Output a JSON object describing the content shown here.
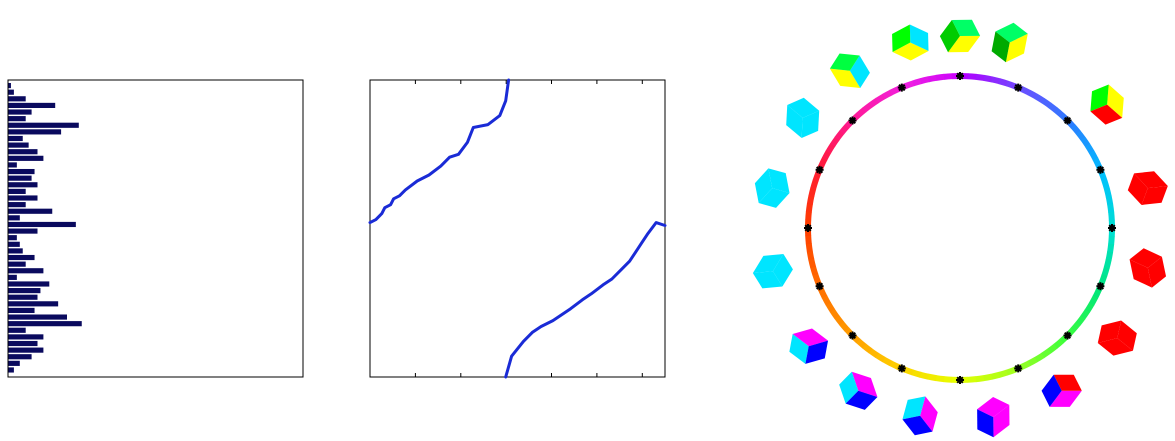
{
  "colors": {
    "bar": "#0a0a5e",
    "curve": "#1a2bd6",
    "marker": "#000000",
    "axes": "#000000"
  },
  "chart_data": [
    {
      "type": "bar",
      "orientation": "horizontal",
      "title": "",
      "xlabel": "",
      "ylabel": "",
      "grid": false,
      "xlim": [
        0,
        1
      ],
      "values": [
        0.01,
        0.02,
        0.06,
        0.16,
        0.08,
        0.06,
        0.24,
        0.18,
        0.05,
        0.07,
        0.1,
        0.12,
        0.03,
        0.09,
        0.08,
        0.1,
        0.06,
        0.1,
        0.06,
        0.15,
        0.04,
        0.23,
        0.1,
        0.03,
        0.04,
        0.05,
        0.09,
        0.06,
        0.12,
        0.03,
        0.14,
        0.11,
        0.1,
        0.17,
        0.09,
        0.2,
        0.25,
        0.06,
        0.12,
        0.1,
        0.12,
        0.08,
        0.04,
        0.02
      ]
    },
    {
      "type": "line",
      "title": "",
      "xlabel": "",
      "ylabel": "",
      "grid": false,
      "xlim": [
        0,
        1
      ],
      "ylim": [
        0,
        1
      ],
      "series": [
        {
          "x": [
            0.0,
            0.02,
            0.04,
            0.05,
            0.07,
            0.08,
            0.1,
            0.12,
            0.16,
            0.2,
            0.24,
            0.27,
            0.3,
            0.33,
            0.35,
            0.4,
            0.44,
            0.46,
            0.47
          ],
          "y": [
            0.52,
            0.53,
            0.55,
            0.57,
            0.58,
            0.6,
            0.61,
            0.63,
            0.66,
            0.68,
            0.71,
            0.74,
            0.75,
            0.79,
            0.84,
            0.85,
            0.88,
            0.93,
            1.0
          ]
        },
        {
          "x": [
            0.46,
            0.48,
            0.52,
            0.55,
            0.58,
            0.62,
            0.68,
            0.72,
            0.75,
            0.79,
            0.82,
            0.85,
            0.88,
            0.9,
            0.92,
            0.94,
            0.97,
            1.0
          ],
          "y": [
            0.0,
            0.07,
            0.12,
            0.15,
            0.17,
            0.19,
            0.23,
            0.26,
            0.28,
            0.31,
            0.33,
            0.36,
            0.39,
            0.42,
            0.45,
            0.48,
            0.52,
            0.51
          ]
        }
      ]
    },
    {
      "type": "scatter",
      "title": "",
      "grid": false,
      "ring_segments": 24,
      "markers_count": 16,
      "ring_colors": [
        "#b000ff",
        "#6a50ff",
        "#2a7dff",
        "#00bfff",
        "#00e0d0",
        "#00e67a",
        "#3cff3c",
        "#a0ff20",
        "#e8ff00",
        "#ffd000",
        "#ff9a00",
        "#ff6a00",
        "#ff3b00",
        "#ff1a3a",
        "#ff1a9a",
        "#f020e0",
        "#c800ff"
      ],
      "cubes": [
        {
          "angle_deg": 75,
          "top": "#ffff00",
          "left": "#00ff66",
          "right": "#00aa00"
        },
        {
          "angle_deg": 90,
          "top": "#ffff00",
          "left": "#00ff66",
          "right": "#00cc00"
        },
        {
          "angle_deg": 105,
          "top": "#ffff00",
          "left": "#00e5ff",
          "right": "#00ff00"
        },
        {
          "angle_deg": 125,
          "top": "#ffff00",
          "left": "#00e5ff",
          "right": "#00ff40"
        },
        {
          "angle_deg": 145,
          "top": "#00e5ff",
          "left": "#00e5ff",
          "right": "#00e5ff"
        },
        {
          "angle_deg": 168,
          "top": "#00e5ff",
          "left": "#00e5ff",
          "right": "#00e5ff"
        },
        {
          "angle_deg": 193,
          "top": "#00e5ff",
          "left": "#00e5ff",
          "right": "#00e5ff"
        },
        {
          "angle_deg": 218,
          "top": "#ff00ff",
          "left": "#00e5ff",
          "right": "#0000ff"
        },
        {
          "angle_deg": 238,
          "top": "#ff00ff",
          "left": "#00e5ff",
          "right": "#0000ff"
        },
        {
          "angle_deg": 258,
          "top": "#ff00ff",
          "left": "#00e5ff",
          "right": "#0000ff"
        },
        {
          "angle_deg": 280,
          "top": "#ff00ff",
          "left": "#ff00ff",
          "right": "#0000ff"
        },
        {
          "angle_deg": 302,
          "top": "#ff00ff",
          "left": "#ff0000",
          "right": "#0000ff"
        },
        {
          "angle_deg": 325,
          "top": "#ff0000",
          "left": "#ff0000",
          "right": "#ff0000"
        },
        {
          "angle_deg": 348,
          "top": "#ff0000",
          "left": "#ff0000",
          "right": "#ff0000"
        },
        {
          "angle_deg": 12,
          "top": "#ff0000",
          "left": "#ff0000",
          "right": "#ff0000"
        },
        {
          "angle_deg": 40,
          "top": "#ffff00",
          "left": "#00ff00",
          "right": "#ff0000"
        }
      ]
    }
  ]
}
